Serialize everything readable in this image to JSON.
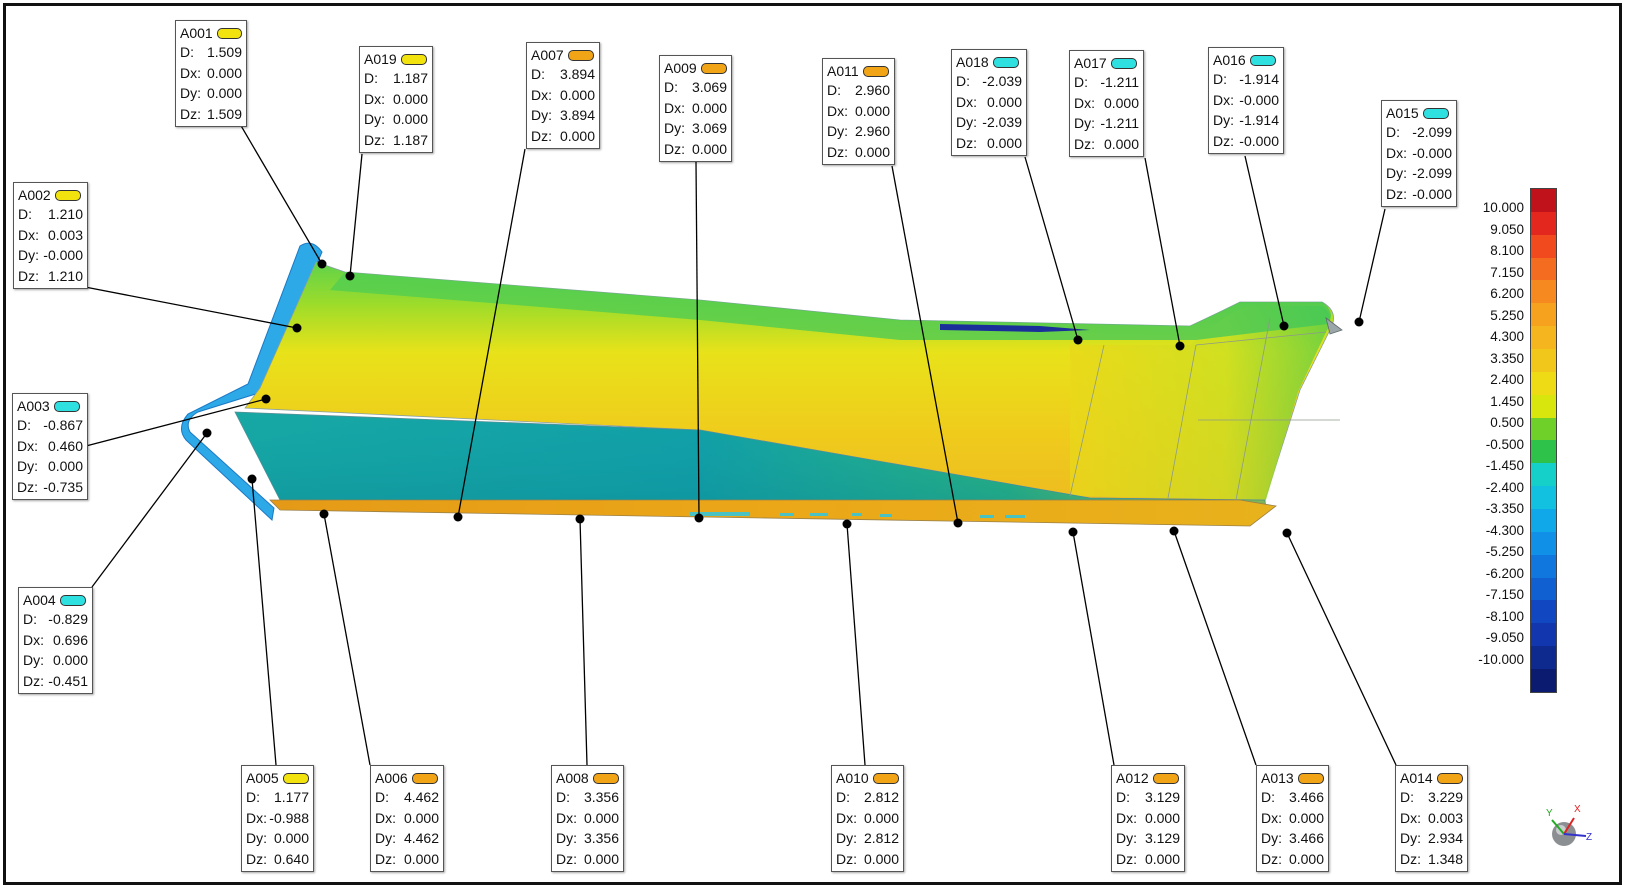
{
  "colors": {
    "yellow_tag": "#f2e30f",
    "orange_tag": "#f0a416",
    "cyan_tag": "#2ee0e0"
  },
  "callouts": [
    {
      "id": "A001",
      "tag": "yellow",
      "D": "1.509",
      "Dx": "0.000",
      "Dy": "0.000",
      "Dz": "1.509"
    },
    {
      "id": "A019",
      "tag": "yellow",
      "D": "1.187",
      "Dx": "0.000",
      "Dy": "0.000",
      "Dz": "1.187"
    },
    {
      "id": "A007",
      "tag": "orange",
      "D": "3.894",
      "Dx": "0.000",
      "Dy": "3.894",
      "Dz": "0.000"
    },
    {
      "id": "A009",
      "tag": "orange",
      "D": "3.069",
      "Dx": "0.000",
      "Dy": "3.069",
      "Dz": "0.000"
    },
    {
      "id": "A011",
      "tag": "orange",
      "D": "2.960",
      "Dx": "0.000",
      "Dy": "2.960",
      "Dz": "0.000"
    },
    {
      "id": "A018",
      "tag": "cyan",
      "D": "-2.039",
      "Dx": "0.000",
      "Dy": "-2.039",
      "Dz": "0.000"
    },
    {
      "id": "A017",
      "tag": "cyan",
      "D": "-1.211",
      "Dx": "0.000",
      "Dy": "-1.211",
      "Dz": "0.000"
    },
    {
      "id": "A016",
      "tag": "cyan",
      "D": "-1.914",
      "Dx": "-0.000",
      "Dy": "-1.914",
      "Dz": "-0.000"
    },
    {
      "id": "A015",
      "tag": "cyan",
      "D": "-2.099",
      "Dx": "-0.000",
      "Dy": "-2.099",
      "Dz": "-0.000"
    },
    {
      "id": "A002",
      "tag": "yellow",
      "D": "1.210",
      "Dx": "0.003",
      "Dy": "-0.000",
      "Dz": "1.210"
    },
    {
      "id": "A003",
      "tag": "cyan",
      "D": "-0.867",
      "Dx": "0.460",
      "Dy": "0.000",
      "Dz": "-0.735"
    },
    {
      "id": "A004",
      "tag": "cyan",
      "D": "-0.829",
      "Dx": "0.696",
      "Dy": "0.000",
      "Dz": "-0.451"
    },
    {
      "id": "A005",
      "tag": "yellow",
      "D": "1.177",
      "Dx": "-0.988",
      "Dy": "0.000",
      "Dz": "0.640"
    },
    {
      "id": "A006",
      "tag": "orange",
      "D": "4.462",
      "Dx": "0.000",
      "Dy": "4.462",
      "Dz": "0.000"
    },
    {
      "id": "A008",
      "tag": "orange",
      "D": "3.356",
      "Dx": "0.000",
      "Dy": "3.356",
      "Dz": "0.000"
    },
    {
      "id": "A010",
      "tag": "orange",
      "D": "2.812",
      "Dx": "0.000",
      "Dy": "2.812",
      "Dz": "0.000"
    },
    {
      "id": "A012",
      "tag": "orange",
      "D": "3.129",
      "Dx": "0.000",
      "Dy": "3.129",
      "Dz": "0.000"
    },
    {
      "id": "A013",
      "tag": "orange",
      "D": "3.466",
      "Dx": "0.000",
      "Dy": "3.466",
      "Dz": "0.000"
    },
    {
      "id": "A014",
      "tag": "orange",
      "D": "3.229",
      "Dx": "0.003",
      "Dy": "2.934",
      "Dz": "1.348"
    }
  ],
  "row_labels": {
    "D": "D:",
    "Dx": "Dx:",
    "Dy": "Dy:",
    "Dz": "Dz:"
  },
  "legend": {
    "labels": [
      "10.000",
      "9.050",
      "8.100",
      "7.150",
      "6.200",
      "5.250",
      "4.300",
      "3.350",
      "2.400",
      "1.450",
      "0.500",
      "-0.500",
      "-1.450",
      "-2.400",
      "-3.350",
      "-4.300",
      "-5.250",
      "-6.200",
      "-7.150",
      "-8.100",
      "-9.050",
      "-10.000"
    ],
    "bands": [
      "#c0121a",
      "#e3261e",
      "#f04a1e",
      "#f36c1f",
      "#f68a20",
      "#f7a21f",
      "#f5b51e",
      "#f2c71c",
      "#eedb16",
      "#d8e60e",
      "#6fd02a",
      "#2fc24a",
      "#14d0c8",
      "#12c0e0",
      "#10a8e8",
      "#1090e6",
      "#1077de",
      "#1060d2",
      "#1148c2",
      "#1236ae",
      "#0f2a8e",
      "#0b1c70"
    ]
  },
  "triad": {
    "x": "X",
    "y": "Y",
    "z": "Z"
  }
}
